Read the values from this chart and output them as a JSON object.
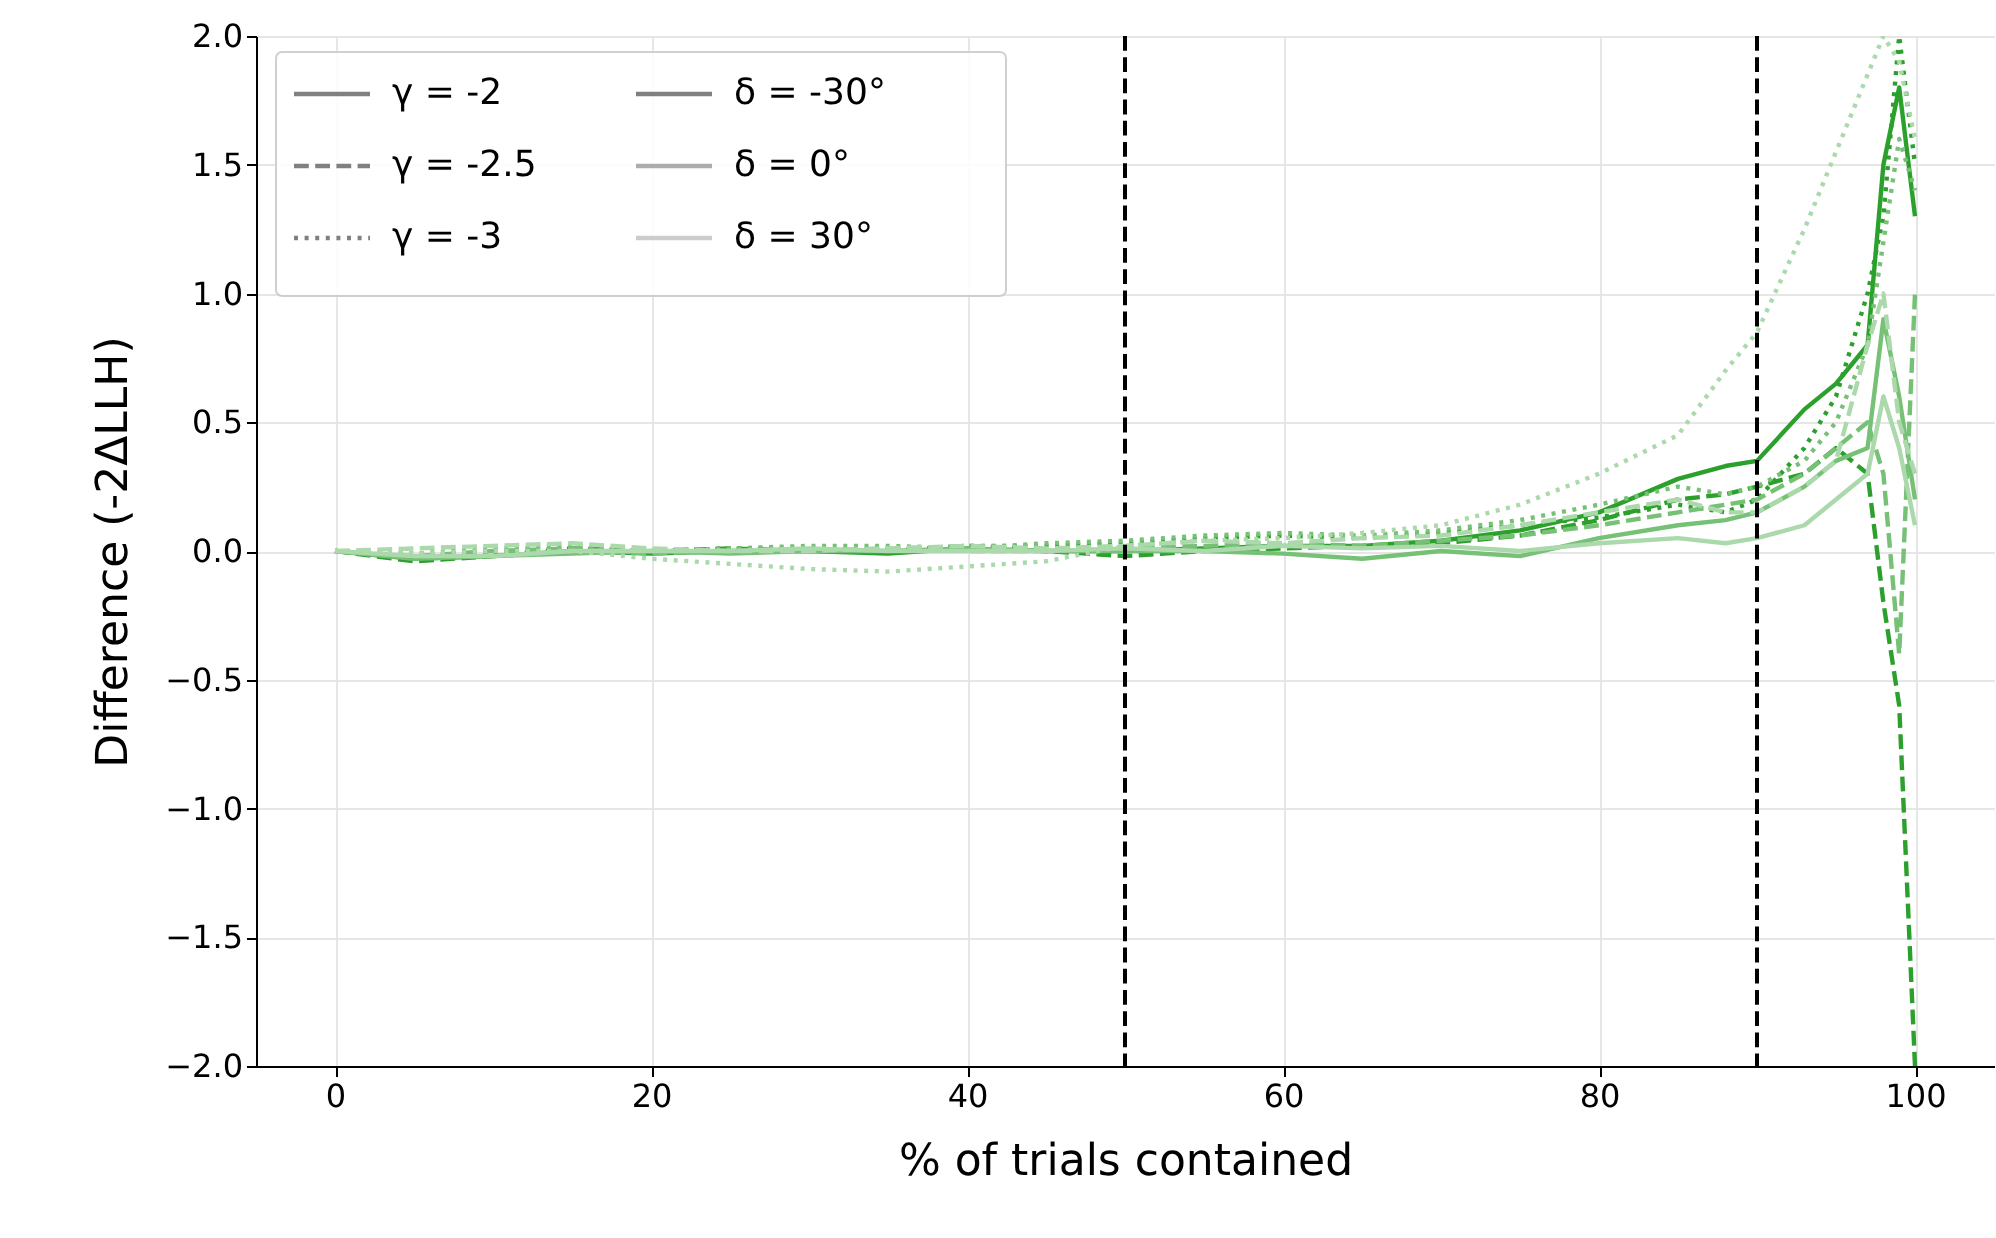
{
  "chart_data": {
    "type": "line",
    "xlabel": "% of trials contained",
    "ylabel": "Difference (-2ΔLLH)",
    "x": [
      0,
      5,
      10,
      15,
      20,
      25,
      30,
      35,
      40,
      45,
      50,
      55,
      60,
      65,
      70,
      75,
      80,
      85,
      88,
      90,
      93,
      95,
      97,
      98,
      99,
      100
    ],
    "xlim": [
      -5,
      105
    ],
    "xticks": [
      0,
      20,
      40,
      60,
      80,
      100
    ],
    "ylim": [
      -2,
      2
    ],
    "yticks": [
      {
        "value": -2,
        "label": "−2.0"
      },
      {
        "value": -1.5,
        "label": "−1.5"
      },
      {
        "value": -1,
        "label": "−1.0"
      },
      {
        "value": -0.5,
        "label": "−0.5"
      },
      {
        "value": 0,
        "label": "0.0"
      },
      {
        "value": 0.5,
        "label": "0.5"
      },
      {
        "value": 1,
        "label": "1.0"
      },
      {
        "value": 1.5,
        "label": "1.5"
      },
      {
        "value": 2,
        "label": "2.0"
      }
    ],
    "grid": true,
    "legend": "top left",
    "ref_lines": [
      {
        "axis": "x",
        "value": 50,
        "color": "#000000",
        "line_style": "dashed"
      },
      {
        "axis": "x",
        "value": 90,
        "color": "#000000",
        "line_style": "dashed"
      }
    ],
    "series": [
      {
        "color": "#2ca02c",
        "line_style": "solid",
        "values": [
          0,
          -0.03,
          -0.02,
          0,
          -0.01,
          0,
          0,
          -0.01,
          0.01,
          0,
          0,
          0.01,
          0.02,
          0.02,
          0.04,
          0.08,
          0.15,
          0.28,
          0.33,
          0.35,
          0.55,
          0.65,
          0.8,
          1.5,
          1.8,
          1.3
        ]
      },
      {
        "color": "#2ca02c",
        "line_style": "dashed",
        "values": [
          0,
          -0.04,
          -0.02,
          0.01,
          0,
          0.01,
          0,
          0,
          0.02,
          0,
          -0.02,
          0,
          0.01,
          0.02,
          0.03,
          0.06,
          0.12,
          0.2,
          0.22,
          0.25,
          0.3,
          0.4,
          0.3,
          -0.2,
          -0.6,
          -2.0
        ]
      },
      {
        "color": "#2ca02c",
        "line_style": "dotted",
        "values": [
          0,
          -0.02,
          -0.01,
          0.01,
          0,
          0.01,
          0.01,
          0,
          0.02,
          0.02,
          0.03,
          0.05,
          0.06,
          0.05,
          0.07,
          0.1,
          0.13,
          0.18,
          0.15,
          0.2,
          0.4,
          0.6,
          1.0,
          1.3,
          2.0,
          1.5
        ]
      },
      {
        "color": "#76c176",
        "line_style": "solid",
        "values": [
          0,
          -0.03,
          -0.02,
          -0.01,
          0,
          -0.01,
          0,
          0,
          0.01,
          0,
          0,
          0,
          -0.01,
          -0.03,
          0,
          -0.02,
          0.05,
          0.1,
          0.12,
          0.15,
          0.25,
          0.35,
          0.4,
          0.9,
          0.6,
          0.2
        ]
      },
      {
        "color": "#76c176",
        "line_style": "dashed",
        "values": [
          0,
          -0.02,
          0,
          0.01,
          -0.01,
          0,
          0,
          0.01,
          0,
          0,
          0.01,
          0.02,
          0.03,
          0.02,
          0.04,
          0.06,
          0.1,
          0.15,
          0.18,
          0.2,
          0.3,
          0.4,
          0.5,
          0.3,
          -0.4,
          1.0
        ]
      },
      {
        "color": "#76c176",
        "line_style": "dotted",
        "values": [
          0,
          -0.01,
          0.01,
          0.02,
          0,
          0.01,
          0.02,
          0.02,
          0.01,
          0.03,
          0.04,
          0.06,
          0.07,
          0.06,
          0.08,
          0.12,
          0.18,
          0.25,
          0.22,
          0.25,
          0.35,
          0.5,
          0.8,
          1.2,
          1.6,
          1.4
        ]
      },
      {
        "color": "#abd9ab",
        "line_style": "solid",
        "values": [
          0,
          -0.02,
          -0.02,
          0,
          0,
          0,
          0.01,
          0,
          0,
          0,
          0.01,
          0,
          0.02,
          0.01,
          0.02,
          0.0,
          0.03,
          0.05,
          0.03,
          0.05,
          0.1,
          0.2,
          0.3,
          0.6,
          0.4,
          0.1
        ]
      },
      {
        "color": "#abd9ab",
        "line_style": "dashed",
        "values": [
          0,
          0.01,
          0.02,
          0.03,
          0.01,
          0,
          0,
          0.01,
          0.02,
          0.01,
          0.02,
          0.04,
          0.03,
          0.05,
          0.06,
          0.1,
          0.15,
          0.2,
          0.15,
          0.15,
          0.25,
          0.35,
          0.8,
          1.0,
          0.5,
          0.3
        ]
      },
      {
        "color": "#abd9ab",
        "line_style": "dotted",
        "values": [
          0,
          -0.01,
          0,
          0,
          -0.03,
          -0.05,
          -0.07,
          -0.08,
          -0.06,
          -0.04,
          0.02,
          0.04,
          0.05,
          0.07,
          0.1,
          0.18,
          0.3,
          0.45,
          0.7,
          0.85,
          1.25,
          1.55,
          1.85,
          2.0,
          1.9,
          1.6
        ]
      },
      {
        "name": "γ = -2",
        "color": "#808080",
        "line_style": "solid",
        "values": [
          null,
          null,
          null,
          null,
          null,
          null,
          null,
          null,
          null,
          null,
          null,
          null,
          null,
          null,
          null,
          null,
          null,
          null,
          null,
          null,
          null,
          null,
          null,
          null,
          null,
          null
        ]
      },
      {
        "name": "γ = -2.5",
        "color": "#808080",
        "line_style": "dashed",
        "values": [
          null,
          null,
          null,
          null,
          null,
          null,
          null,
          null,
          null,
          null,
          null,
          null,
          null,
          null,
          null,
          null,
          null,
          null,
          null,
          null,
          null,
          null,
          null,
          null,
          null,
          null
        ]
      },
      {
        "name": "γ = -3",
        "color": "#808080",
        "line_style": "dotted",
        "values": [
          null,
          null,
          null,
          null,
          null,
          null,
          null,
          null,
          null,
          null,
          null,
          null,
          null,
          null,
          null,
          null,
          null,
          null,
          null,
          null,
          null,
          null,
          null,
          null,
          null,
          null
        ]
      },
      {
        "name": "δ = -30°",
        "color": "#808080",
        "line_style": "solid",
        "values": [
          null,
          null,
          null,
          null,
          null,
          null,
          null,
          null,
          null,
          null,
          null,
          null,
          null,
          null,
          null,
          null,
          null,
          null,
          null,
          null,
          null,
          null,
          null,
          null,
          null,
          null
        ]
      },
      {
        "name": "δ = 0°",
        "color": "#acacac",
        "line_style": "solid",
        "values": [
          null,
          null,
          null,
          null,
          null,
          null,
          null,
          null,
          null,
          null,
          null,
          null,
          null,
          null,
          null,
          null,
          null,
          null,
          null,
          null,
          null,
          null,
          null,
          null,
          null,
          null
        ]
      },
      {
        "name": "δ = 30°",
        "color": "#cccccc",
        "line_style": "solid",
        "values": [
          null,
          null,
          null,
          null,
          null,
          null,
          null,
          null,
          null,
          null,
          null,
          null,
          null,
          null,
          null,
          null,
          null,
          null,
          null,
          null,
          null,
          null,
          null,
          null,
          null,
          null
        ]
      }
    ]
  }
}
